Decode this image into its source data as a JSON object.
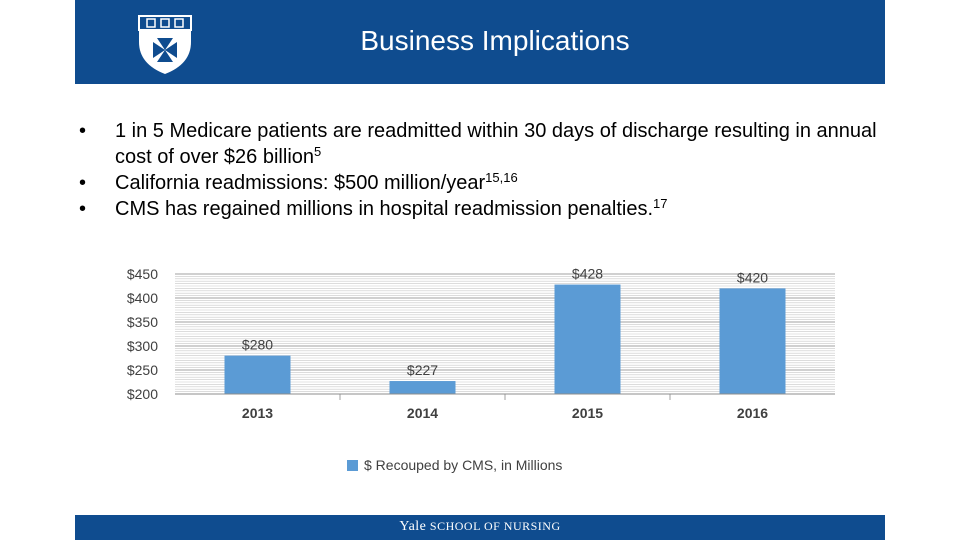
{
  "slide": {
    "title": "Business Implications",
    "bullets": [
      {
        "text": "1 in 5 Medicare patients are readmitted within 30 days of discharge resulting in annual cost of over $26 billion",
        "sup": "5"
      },
      {
        "text": "California readmissions: $500 million/year",
        "sup": "15,16"
      },
      {
        "text": "CMS has regained millions in hospital readmission penalties.",
        "sup": "17"
      }
    ],
    "footer": {
      "brand": "Yale",
      "school": "SCHOOL OF NURSING"
    },
    "colors": {
      "header": "#0f4c8f",
      "bar": "#5b9bd5"
    },
    "logo_icon": "maltese-cross-shield-icon"
  },
  "chart_data": {
    "type": "bar",
    "categories": [
      "2013",
      "2014",
      "2015",
      "2016"
    ],
    "series": [
      {
        "name": "$ Recouped by CMS, in Millions",
        "values": [
          280,
          227,
          428,
          420
        ]
      }
    ],
    "data_labels": [
      "$280",
      "$227",
      "$428",
      "$420"
    ],
    "y_ticks": [
      "$200",
      "$250",
      "$300",
      "$350",
      "$400",
      "$450"
    ],
    "ylim": [
      200,
      450
    ],
    "grid": true,
    "legend_position": "bottom",
    "title": "",
    "xlabel": "",
    "ylabel": ""
  }
}
